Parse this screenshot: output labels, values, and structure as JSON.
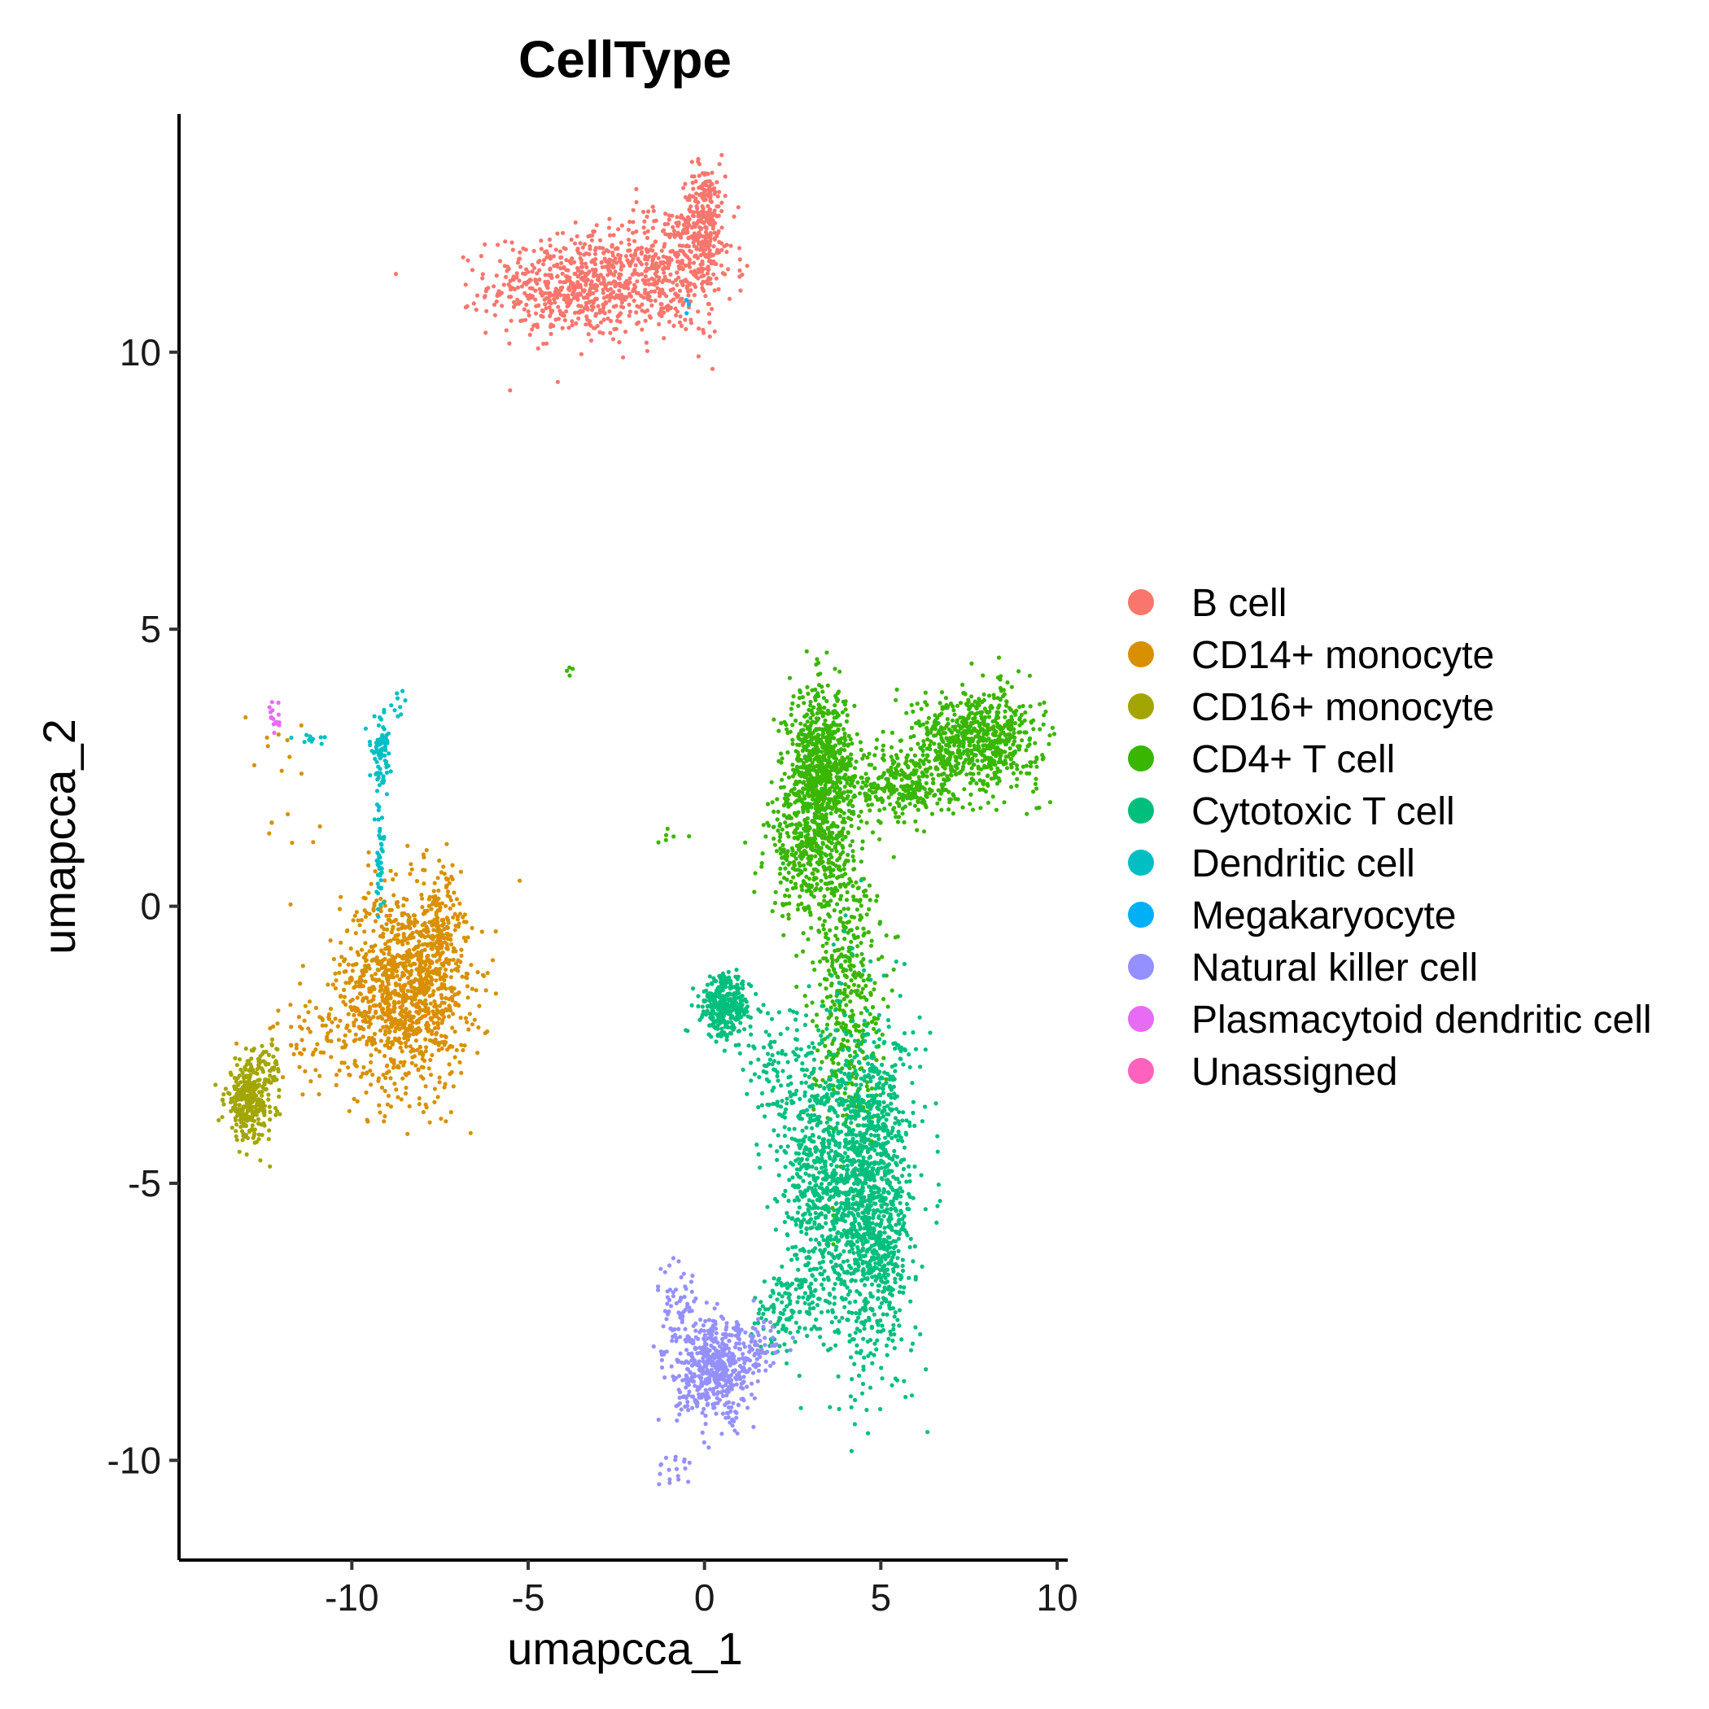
{
  "chart_data": {
    "type": "scatter",
    "title": "CellType",
    "xlabel": "umapcca_1",
    "ylabel": "umapcca_2",
    "xlim": [
      -14.9,
      10.3
    ],
    "ylim": [
      -11.8,
      14.3
    ],
    "x_ticks": [
      -10,
      -5,
      0,
      5,
      10
    ],
    "y_ticks": [
      -10,
      -5,
      0,
      5,
      10
    ],
    "x_tick_labels": [
      "-10",
      "-5",
      "0",
      "5",
      "10"
    ],
    "y_tick_labels": [
      "-10",
      "-5",
      "0",
      "5",
      "10"
    ],
    "grid": false,
    "legend_position": "right",
    "series": [
      {
        "name": "B cell",
        "color": "#F8766D",
        "clusters": [
          {
            "cx": -3.5,
            "cy": 11.2,
            "sx": 1.3,
            "sy": 0.45,
            "n": 650
          },
          {
            "cx": -1.0,
            "cy": 11.5,
            "sx": 0.9,
            "sy": 0.6,
            "n": 350
          },
          {
            "cx": 0.0,
            "cy": 12.4,
            "sx": 0.3,
            "sy": 0.5,
            "n": 250
          }
        ]
      },
      {
        "name": "CD14+ monocyte",
        "color": "#D89000",
        "clusters": [
          {
            "cx": -8.5,
            "cy": -1.5,
            "sx": 0.9,
            "sy": 0.9,
            "n": 1100
          },
          {
            "cx": -7.5,
            "cy": -0.5,
            "sx": 0.3,
            "sy": 0.6,
            "n": 150
          },
          {
            "cx": -11.0,
            "cy": -2.3,
            "sx": 0.9,
            "sy": 0.45,
            "n": 70
          },
          {
            "cx": -12.0,
            "cy": 2.0,
            "sx": 0.5,
            "sy": 0.8,
            "n": 18
          }
        ]
      },
      {
        "name": "CD16+ monocyte",
        "color": "#A3A500",
        "clusters": [
          {
            "cx": -12.9,
            "cy": -3.5,
            "sx": 0.35,
            "sy": 0.35,
            "n": 320
          },
          {
            "cx": -12.4,
            "cy": -2.9,
            "sx": 0.2,
            "sy": 0.2,
            "n": 40
          }
        ]
      },
      {
        "name": "CD4+ T cell",
        "color": "#39B600",
        "clusters": [
          {
            "cx": 3.3,
            "cy": 2.5,
            "sx": 0.45,
            "sy": 0.7,
            "n": 750
          },
          {
            "cx": 3.0,
            "cy": 1.0,
            "sx": 0.6,
            "sy": 0.6,
            "n": 400
          },
          {
            "cx": 7.7,
            "cy": 3.0,
            "sx": 0.9,
            "sy": 0.45,
            "n": 700
          },
          {
            "cx": 5.6,
            "cy": 2.2,
            "sx": 0.8,
            "sy": 0.35,
            "n": 300
          },
          {
            "cx": 4.0,
            "cy": -1.5,
            "sx": 0.5,
            "sy": 1.3,
            "n": 450
          },
          {
            "cx": -3.8,
            "cy": 4.3,
            "sx": 0.05,
            "sy": 0.05,
            "n": 4
          },
          {
            "cx": -1.0,
            "cy": 1.3,
            "sx": 0.3,
            "sy": 0.1,
            "n": 6
          }
        ]
      },
      {
        "name": "Cytotoxic T cell",
        "color": "#00BF7D",
        "clusters": [
          {
            "cx": 4.7,
            "cy": -5.2,
            "sx": 0.6,
            "sy": 1.5,
            "n": 1350
          },
          {
            "cx": 3.2,
            "cy": -4.8,
            "sx": 0.5,
            "sy": 1.3,
            "n": 550
          },
          {
            "cx": 0.6,
            "cy": -1.8,
            "sx": 0.35,
            "sy": 0.28,
            "n": 320
          },
          {
            "cx": 2.0,
            "cy": -3.0,
            "sx": 0.5,
            "sy": 0.6,
            "n": 90
          },
          {
            "cx": 2.3,
            "cy": -7.3,
            "sx": 0.5,
            "sy": 0.4,
            "n": 120
          }
        ]
      },
      {
        "name": "Dendritic cell",
        "color": "#00BFC4",
        "clusters": [
          {
            "cx": -9.2,
            "cy": 2.8,
            "sx": 0.15,
            "sy": 0.3,
            "n": 80
          },
          {
            "cx": -9.2,
            "cy": 1.0,
            "sx": 0.06,
            "sy": 0.6,
            "n": 50
          },
          {
            "cx": -11.2,
            "cy": 3.0,
            "sx": 0.3,
            "sy": 0.05,
            "n": 10
          },
          {
            "cx": -8.7,
            "cy": 3.6,
            "sx": 0.15,
            "sy": 0.15,
            "n": 8
          }
        ]
      },
      {
        "name": "Megakaryocyte",
        "color": "#00B0F6",
        "clusters": [
          {
            "cx": -0.5,
            "cy": 10.9,
            "sx": 0.05,
            "sy": 0.2,
            "n": 4
          }
        ]
      },
      {
        "name": "Natural killer cell",
        "color": "#9590FF",
        "clusters": [
          {
            "cx": 0.3,
            "cy": -8.4,
            "sx": 0.55,
            "sy": 0.45,
            "n": 500
          },
          {
            "cx": -0.8,
            "cy": -7.2,
            "sx": 0.3,
            "sy": 0.45,
            "n": 60
          },
          {
            "cx": 1.4,
            "cy": -7.9,
            "sx": 0.4,
            "sy": 0.25,
            "n": 80
          },
          {
            "cx": -1.0,
            "cy": -10.2,
            "sx": 0.3,
            "sy": 0.2,
            "n": 18
          }
        ]
      },
      {
        "name": "Plasmacytoid dendritic cell",
        "color": "#E76BF3",
        "clusters": [
          {
            "cx": -12.2,
            "cy": 3.4,
            "sx": 0.1,
            "sy": 0.12,
            "n": 18
          }
        ]
      },
      {
        "name": "Unassigned",
        "color": "#FF62BC",
        "clusters": []
      }
    ]
  }
}
